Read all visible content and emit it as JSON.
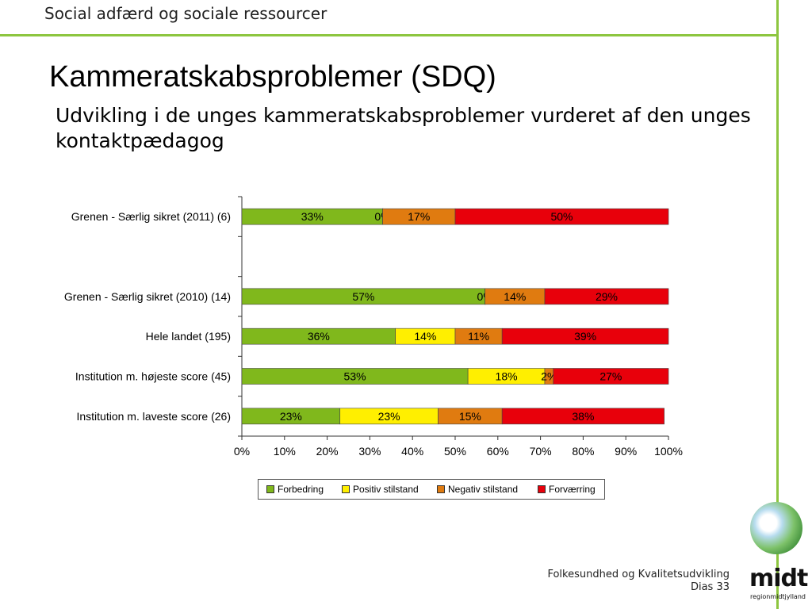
{
  "slide": {
    "header": "Social adfærd og sociale ressourcer",
    "title": "Kammeratskabsproblemer (SDQ)",
    "subtitle": "Udvikling i de unges kammeratskabsproblemer vurderet af den unges kontaktpædagog",
    "footer_line1": "Folkesundhed og Kvalitetsudvikling",
    "footer_line2": "Dias 33",
    "logo_text": "midt",
    "logo_sub": "regionmidtjylland"
  },
  "chart_data": {
    "type": "bar",
    "orientation": "horizontal",
    "stacked": "percent",
    "categories": [
      "Grenen - Særlig sikret (2011)   (6)",
      "",
      "Grenen - Særlig sikret (2010)   (14)",
      "Hele landet (195)",
      "Institution m. højeste score (45)",
      "Institution m. laveste score (26)"
    ],
    "series": [
      {
        "name": "Forbedring",
        "color": "#80b81c",
        "values": [
          33,
          null,
          57,
          36,
          53,
          23
        ],
        "labels": [
          "33%",
          "",
          "57%",
          "36%",
          "53%",
          "23%"
        ]
      },
      {
        "name": "Positiv stilstand",
        "color": "#ffef00",
        "values": [
          0,
          null,
          0,
          14,
          18,
          23
        ],
        "labels": [
          "0%",
          "",
          "0%",
          "14%",
          "18%",
          "23%"
        ]
      },
      {
        "name": "Negativ stilstand",
        "color": "#e07b10",
        "values": [
          17,
          null,
          14,
          11,
          2,
          15
        ],
        "labels": [
          "17%",
          "",
          "14%",
          "11%",
          "2%",
          "15%"
        ]
      },
      {
        "name": "Forværring",
        "color": "#e8000b",
        "values": [
          50,
          null,
          29,
          39,
          27,
          38
        ],
        "labels": [
          "50%",
          "",
          "29%",
          "39%",
          "27%",
          "38%"
        ]
      }
    ],
    "x_ticks": [
      "0%",
      "10%",
      "20%",
      "30%",
      "40%",
      "50%",
      "60%",
      "70%",
      "80%",
      "90%",
      "100%"
    ],
    "xlim": [
      0,
      100
    ],
    "legend_position": "bottom"
  }
}
